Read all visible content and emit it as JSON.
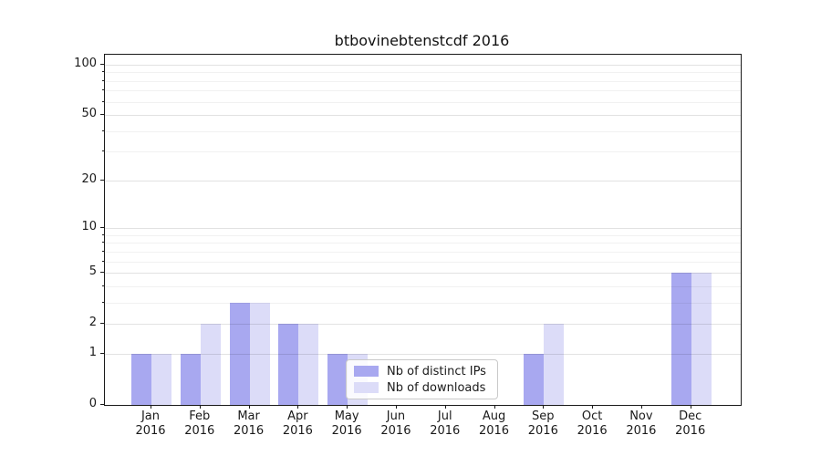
{
  "chart_data": {
    "type": "bar",
    "title": "btbovinebtenstcdf 2016",
    "categories": [
      "Jan 2016",
      "Feb 2016",
      "Mar 2016",
      "Apr 2016",
      "May 2016",
      "Jun 2016",
      "Jul 2016",
      "Aug 2016",
      "Sep 2016",
      "Oct 2016",
      "Nov 2016",
      "Dec 2016"
    ],
    "series": [
      {
        "name": "Nb of distinct IPs",
        "color": "#a8a8f0",
        "values": [
          1,
          1,
          3,
          2,
          1,
          0,
          0,
          0,
          1,
          0,
          0,
          5
        ]
      },
      {
        "name": "Nb of downloads",
        "color": "#dcdcf8",
        "values": [
          1,
          2,
          3,
          2,
          1,
          0,
          0,
          0,
          2,
          0,
          0,
          5
        ]
      }
    ],
    "yscale": "log(1+x)",
    "ylim": [
      0,
      100
    ],
    "ytick_values": [
      0,
      1,
      2,
      5,
      10,
      20,
      50,
      100
    ],
    "ytick_labels": [
      "0",
      "1",
      "2",
      "5",
      "10",
      "20",
      "50",
      "100"
    ],
    "minor_ytick_values": [
      3,
      4,
      6,
      7,
      8,
      9,
      30,
      40,
      60,
      70,
      80,
      90
    ],
    "grid": true,
    "legend_position": "lower center (overlapping plot)",
    "colors": {
      "background": "#ffffff",
      "axis": "#1a1a1a",
      "grid_major": "#e2e2e2",
      "grid_minor": "#f1f1f1"
    }
  }
}
